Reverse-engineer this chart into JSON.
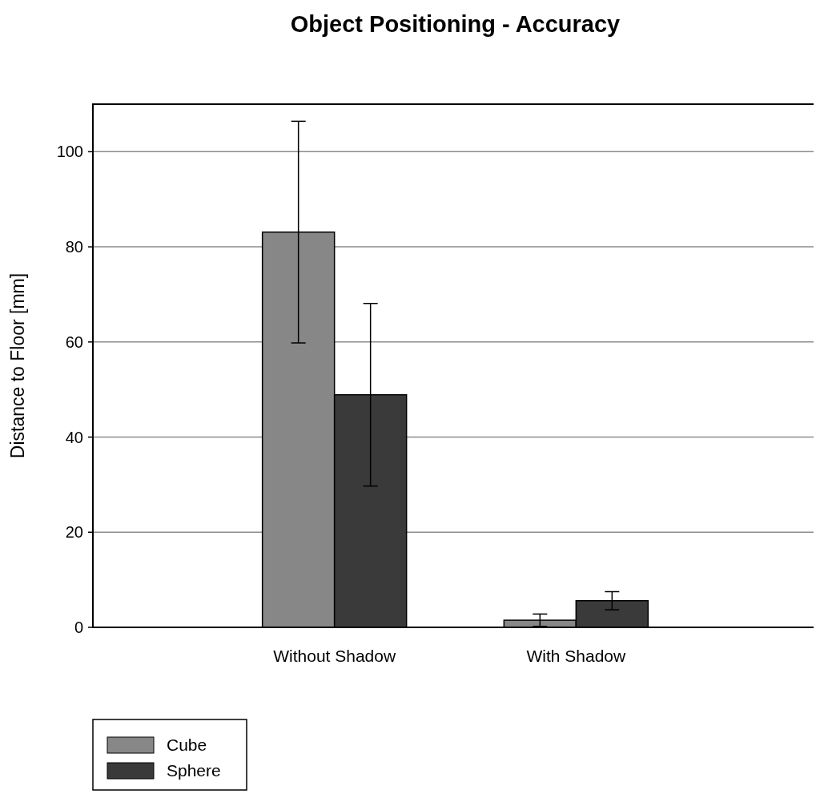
{
  "chart_data": {
    "type": "bar",
    "title": "Object Positioning - Accuracy",
    "ylabel": "Distance to Floor [mm]",
    "categories": [
      "Without Shadow",
      "With Shadow"
    ],
    "series": [
      {
        "name": "Cube",
        "color": "#878787",
        "values": [
          83.1,
          1.5
        ],
        "errors": [
          23.3,
          1.3
        ]
      },
      {
        "name": "Sphere",
        "color": "#3a3a3a",
        "values": [
          48.9,
          5.6
        ],
        "errors": [
          19.2,
          1.9
        ]
      }
    ],
    "ylim": [
      0,
      110
    ],
    "yticks": [
      0,
      20,
      40,
      60,
      80,
      100
    ],
    "grid": "y",
    "legend": "bottom left"
  }
}
